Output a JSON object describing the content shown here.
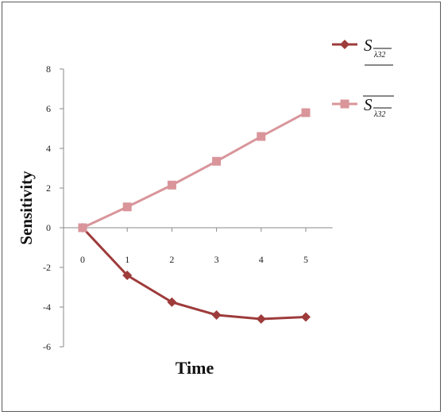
{
  "chart_data": {
    "type": "line",
    "x": [
      0,
      1,
      2,
      3,
      4,
      5
    ],
    "xlabel": "Time",
    "ylabel": "Sensitivity",
    "ylim": [
      -6,
      8
    ],
    "y_ticks": [
      8,
      6,
      4,
      2,
      0,
      -2,
      -4,
      -6
    ],
    "x_ticks": [
      0,
      1,
      2,
      3,
      4,
      5
    ],
    "grid": false,
    "legend_position": "right",
    "series": [
      {
        "name_base": "S",
        "name_sub": "λ32",
        "overline": "sub",
        "marker": "diamond",
        "color": "#9e3b3b",
        "values": [
          0,
          -2.4,
          -3.75,
          -4.4,
          -4.6,
          -4.5
        ]
      },
      {
        "name_base": "S",
        "name_sub": "λ32",
        "overline": "all",
        "marker": "square",
        "color": "#d9959a",
        "values": [
          0,
          1.05,
          2.15,
          3.35,
          4.6,
          5.8
        ]
      }
    ]
  }
}
